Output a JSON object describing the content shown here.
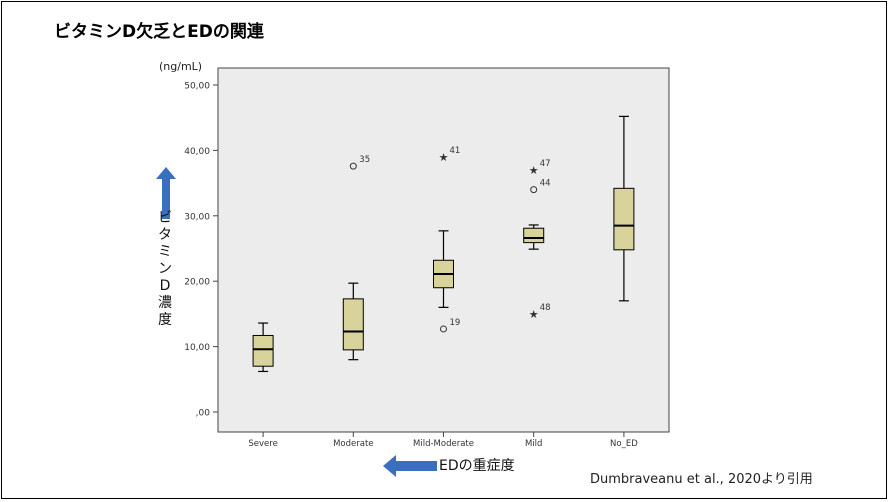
{
  "title": "ビタミンD欠乏とEDの関連",
  "citation": "Dumbraveanu et al., 2020より引用",
  "y_axis_label": "ビタミンD濃度",
  "x_axis_label": "EDの重症度",
  "colors": {
    "box_fill": "#d8d29b",
    "plot_bg": "#ececec",
    "arrow": "#3a6fc0"
  },
  "chart_data": {
    "type": "boxplot",
    "title": "ビタミンD欠乏とEDの関連",
    "unit_label": "(ng/mL)",
    "ylim": [
      0,
      50
    ],
    "yticks": [
      "0",
      "10",
      "20",
      "30",
      "40",
      "50"
    ],
    "ytick_labels": [
      ",00",
      "10,00",
      "20,00",
      "30,00",
      "40,00",
      "50,00"
    ],
    "categories": [
      "Severe",
      "Moderate",
      "Mild-Moderate",
      "Mild",
      "No_ED"
    ],
    "boxes": [
      {
        "category": "Severe",
        "min": 6.2,
        "q1": 7.0,
        "median": 9.6,
        "q3": 11.7,
        "max": 13.6,
        "outliers": []
      },
      {
        "category": "Moderate",
        "min": 8.0,
        "q1": 9.5,
        "median": 12.3,
        "q3": 17.3,
        "max": 19.7,
        "outliers": [
          {
            "value": 37.6,
            "label": "35",
            "marker": "circle"
          }
        ]
      },
      {
        "category": "Mild-Moderate",
        "min": 16.0,
        "q1": 19.0,
        "median": 21.1,
        "q3": 23.2,
        "max": 27.7,
        "outliers": [
          {
            "value": 39.0,
            "label": "41",
            "marker": "star"
          },
          {
            "value": 12.7,
            "label": "19",
            "marker": "circle"
          }
        ]
      },
      {
        "category": "Mild",
        "min": 24.9,
        "q1": 25.9,
        "median": 26.6,
        "q3": 28.1,
        "max": 28.6,
        "outliers": [
          {
            "value": 37.0,
            "label": "47",
            "marker": "star"
          },
          {
            "value": 34.0,
            "label": "44",
            "marker": "circle"
          },
          {
            "value": 15.0,
            "label": "48",
            "marker": "star"
          }
        ]
      },
      {
        "category": "No_ED",
        "min": 17.0,
        "q1": 24.8,
        "median": 28.5,
        "q3": 34.2,
        "max": 45.2,
        "outliers": []
      }
    ],
    "grid": false,
    "legend": "none"
  }
}
